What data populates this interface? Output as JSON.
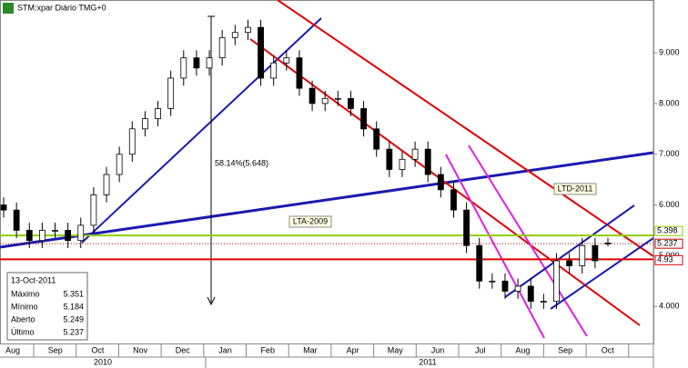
{
  "chart_data": {
    "type": "candlestick",
    "title": "STM:xpar Diário TMG+0",
    "open": [
      6.0,
      5.9,
      5.5,
      5.3,
      5.5,
      5.5,
      5.3,
      5.6,
      6.2,
      6.6,
      7.0,
      7.5,
      7.7,
      7.9,
      8.5,
      8.9,
      8.7,
      8.9,
      9.3,
      9.4,
      9.5,
      8.5,
      8.8,
      8.9,
      8.3,
      8.0,
      8.1,
      8.1,
      7.9,
      7.5,
      7.1,
      6.7,
      6.9,
      7.1,
      6.6,
      6.3,
      5.9,
      5.2,
      4.5,
      4.5,
      4.3,
      4.4,
      4.1,
      4.1,
      4.9,
      4.8,
      5.2,
      5.249
    ],
    "high": [
      6.15,
      6.05,
      5.65,
      5.65,
      5.65,
      5.65,
      5.75,
      6.35,
      6.75,
      7.15,
      7.65,
      7.85,
      8.05,
      8.65,
      9.05,
      9.05,
      9.05,
      9.45,
      9.55,
      9.65,
      9.65,
      8.95,
      9.05,
      9.05,
      8.45,
      8.25,
      8.25,
      8.25,
      8.05,
      7.65,
      7.25,
      7.05,
      7.25,
      7.25,
      6.75,
      6.45,
      6.05,
      5.35,
      4.65,
      4.65,
      4.55,
      4.55,
      4.25,
      5.05,
      5.05,
      5.35,
      5.35,
      5.351
    ],
    "low": [
      5.75,
      5.35,
      5.15,
      5.15,
      5.35,
      5.15,
      5.15,
      5.45,
      6.05,
      6.45,
      6.85,
      7.35,
      7.55,
      7.75,
      8.35,
      8.55,
      8.55,
      8.75,
      9.15,
      9.25,
      8.35,
      8.35,
      8.65,
      8.15,
      7.85,
      7.85,
      7.95,
      7.75,
      7.35,
      6.95,
      6.55,
      6.55,
      6.75,
      6.45,
      6.15,
      5.75,
      5.05,
      4.35,
      4.35,
      4.15,
      4.15,
      3.95,
      3.95,
      3.95,
      4.65,
      4.65,
      4.75,
      5.184
    ],
    "close": [
      5.9,
      5.5,
      5.3,
      5.5,
      5.5,
      5.3,
      5.6,
      6.2,
      6.6,
      7.0,
      7.5,
      7.7,
      7.9,
      8.5,
      8.9,
      8.7,
      8.9,
      9.3,
      9.4,
      9.5,
      8.5,
      8.8,
      8.9,
      8.3,
      8.0,
      8.1,
      8.1,
      7.9,
      7.5,
      7.1,
      6.7,
      6.9,
      7.1,
      6.6,
      6.3,
      5.9,
      5.2,
      4.5,
      4.5,
      4.3,
      4.4,
      4.1,
      4.1,
      4.9,
      4.8,
      5.2,
      4.9,
      5.237
    ],
    "ylim": [
      3.27,
      10.04
    ],
    "yticks": [
      {
        "value": 4,
        "label": "4.000"
      },
      {
        "value": 5,
        "label": "5.000"
      },
      {
        "value": 6,
        "label": "6.000"
      },
      {
        "value": 7,
        "label": "7.000"
      },
      {
        "value": 8,
        "label": "8.000"
      },
      {
        "value": 9,
        "label": "9.000"
      }
    ],
    "months": [
      "Aug",
      "Sep",
      "Oct",
      "Nov",
      "Dec",
      "Jan",
      "Feb",
      "Mar",
      "Apr",
      "May",
      "Jun",
      "Jul",
      "Aug",
      "Sep",
      "Oct"
    ],
    "years": [
      "2010",
      "2011"
    ],
    "levels": [
      {
        "value": 5.398,
        "color": "#8fce00"
      },
      {
        "value": 5.237,
        "color": "#c00000"
      },
      {
        "value": 4.93,
        "color": "#e00000"
      }
    ],
    "annotations": [
      "58.14%(5.648)",
      "LTA-2009",
      "LTD-2011"
    ],
    "info": {
      "date": "13-Oct-2011",
      "fields": [
        {
          "label": "Máximo",
          "value": 5.351
        },
        {
          "label": "Mínimo",
          "value": 5.184
        },
        {
          "label": "Aberto",
          "value": 5.249
        },
        {
          "label": "Último",
          "value": 5.237
        }
      ]
    }
  }
}
